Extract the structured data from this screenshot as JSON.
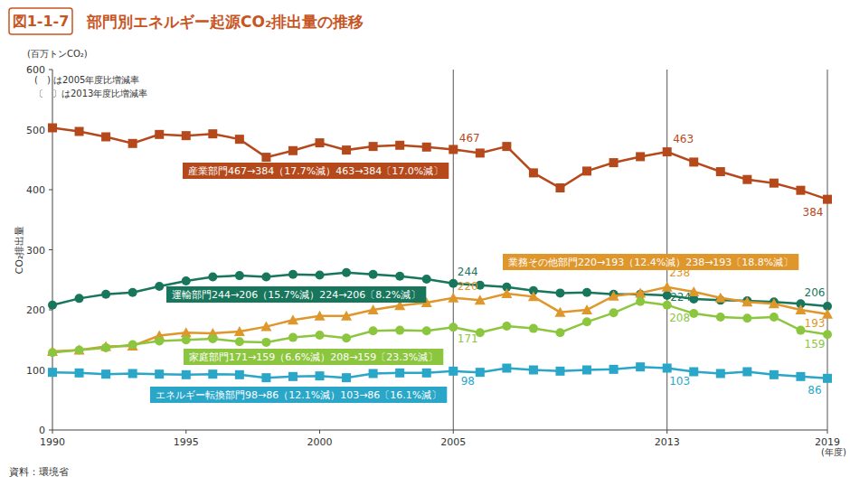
{
  "chart_data": {
    "type": "line",
    "figure_number": "図1-1-7",
    "title": "部門別エネルギー起源CO₂排出量の推移",
    "unit_label": "(百万トンCO₂)",
    "notes": [
      "(　) は2005年度比増減率",
      "〔　〕は2013年度比増減率"
    ],
    "y_label": "CO₂排出量",
    "x_unit": "(年度)",
    "source": "資料：環境省",
    "x": [
      1990,
      1991,
      1992,
      1993,
      1994,
      1995,
      1996,
      1997,
      1998,
      1999,
      2000,
      2001,
      2002,
      2003,
      2004,
      2005,
      2006,
      2007,
      2008,
      2009,
      2010,
      2011,
      2012,
      2013,
      2014,
      2015,
      2016,
      2017,
      2018,
      2019
    ],
    "xlim": [
      1990,
      2019
    ],
    "xticks": [
      1990,
      1995,
      2000,
      2005,
      2013,
      2019
    ],
    "ylim": [
      0,
      600
    ],
    "yticks": [
      0,
      100,
      200,
      300,
      400,
      500,
      600
    ],
    "vlines": [
      2005,
      2013,
      2019
    ],
    "grid": false,
    "series": [
      {
        "name": "産業部門467→384（17.7%減）463→384〔17.0%減〕",
        "color": "#b5491c",
        "marker": "square",
        "data_labels": true,
        "values": [
          503,
          497,
          488,
          477,
          492,
          490,
          493,
          484,
          454,
          465,
          478,
          466,
          472,
          474,
          471,
          467,
          461,
          472,
          428,
          403,
          431,
          445,
          455,
          463,
          446,
          430,
          417,
          411,
          399,
          384
        ],
        "value_labels": [
          null,
          null,
          null,
          null,
          null,
          null,
          null,
          null,
          null,
          null,
          null,
          null,
          null,
          null,
          null,
          "467",
          null,
          null,
          null,
          null,
          null,
          null,
          null,
          "463",
          null,
          null,
          null,
          null,
          null,
          "384"
        ]
      },
      {
        "name": "運輸部門244→206（15.7%減）224→206〔8.2%減〕",
        "color": "#17765b",
        "marker": "circle",
        "data_labels": true,
        "values": [
          208,
          219,
          226,
          229,
          239,
          248,
          255,
          257,
          255,
          259,
          258,
          262,
          259,
          256,
          251,
          244,
          241,
          238,
          232,
          228,
          229,
          226,
          226,
          224,
          218,
          216,
          215,
          213,
          210,
          206
        ],
        "value_labels": [
          null,
          null,
          null,
          null,
          null,
          null,
          null,
          null,
          null,
          null,
          null,
          null,
          null,
          null,
          null,
          "244",
          null,
          null,
          null,
          null,
          null,
          null,
          null,
          "224",
          null,
          null,
          null,
          null,
          null,
          "206"
        ]
      },
      {
        "name": "業務その他部門220→193（12.4%減）238→193〔18.8%減〕",
        "color": "#df962a",
        "marker": "triangle",
        "data_labels": true,
        "values": [
          131,
          133,
          139,
          140,
          157,
          162,
          161,
          164,
          172,
          183,
          190,
          190,
          200,
          207,
          212,
          220,
          216,
          227,
          222,
          196,
          200,
          223,
          228,
          238,
          230,
          220,
          213,
          210,
          200,
          193
        ],
        "value_labels": [
          null,
          null,
          null,
          null,
          null,
          null,
          null,
          null,
          null,
          null,
          null,
          null,
          null,
          null,
          null,
          "220",
          null,
          null,
          null,
          null,
          null,
          null,
          null,
          "238",
          null,
          null,
          null,
          null,
          null,
          "193"
        ]
      },
      {
        "name": "家庭部門171→159（6.6%減）208→159〔23.3%減〕",
        "color": "#8cc63f",
        "marker": "circle",
        "data_labels": true,
        "values": [
          129,
          133,
          137,
          142,
          148,
          150,
          152,
          147,
          146,
          154,
          158,
          153,
          165,
          166,
          165,
          171,
          162,
          173,
          169,
          162,
          180,
          195,
          214,
          208,
          194,
          188,
          186,
          188,
          166,
          159
        ],
        "value_labels": [
          null,
          null,
          null,
          null,
          null,
          null,
          null,
          null,
          null,
          null,
          null,
          null,
          null,
          null,
          null,
          "171",
          null,
          null,
          null,
          null,
          null,
          null,
          null,
          "208",
          null,
          null,
          null,
          null,
          null,
          "159"
        ]
      },
      {
        "name": "エネルギー転換部門98→86（12.1%減）103→86〔16.1%減〕",
        "color": "#29a6c8",
        "marker": "square",
        "data_labels": true,
        "values": [
          96,
          95,
          93,
          94,
          93,
          92,
          93,
          92,
          87,
          89,
          90,
          87,
          94,
          95,
          95,
          98,
          96,
          103,
          100,
          98,
          100,
          101,
          105,
          103,
          97,
          94,
          97,
          92,
          89,
          86
        ],
        "value_labels": [
          null,
          null,
          null,
          null,
          null,
          null,
          null,
          null,
          null,
          null,
          null,
          null,
          null,
          null,
          null,
          "98",
          null,
          null,
          null,
          null,
          null,
          null,
          null,
          "103",
          null,
          null,
          null,
          null,
          null,
          "86"
        ]
      }
    ]
  }
}
